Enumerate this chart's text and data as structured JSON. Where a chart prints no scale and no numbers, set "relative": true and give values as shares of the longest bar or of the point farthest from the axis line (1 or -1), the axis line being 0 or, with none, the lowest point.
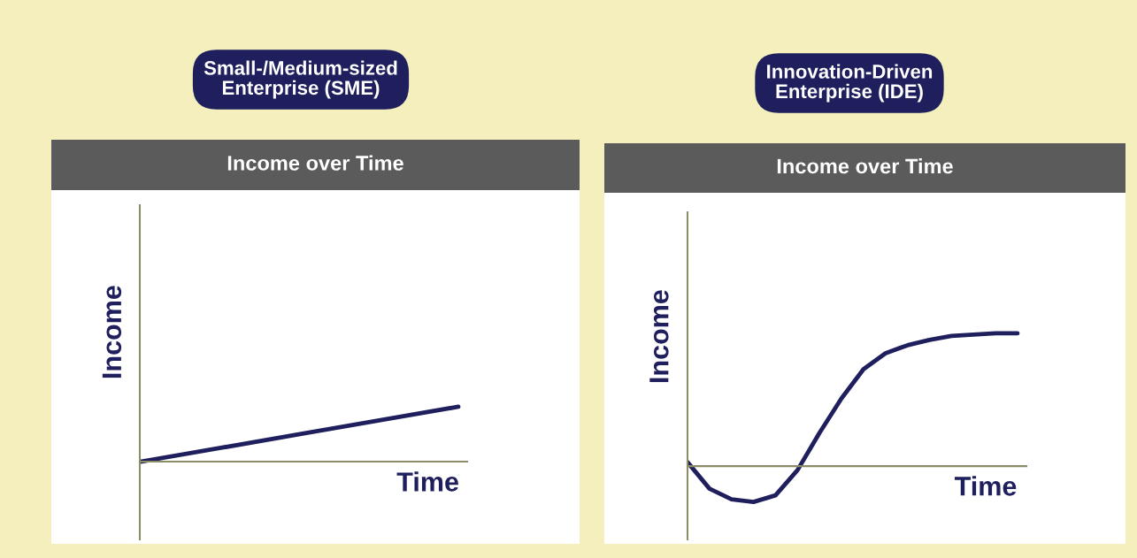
{
  "chart_data": [
    {
      "type": "line",
      "title": "Small-/Medium-sized\nEnterprise (SME)",
      "subtitle": "Income over Time",
      "xlabel": "Time",
      "ylabel": "Income",
      "relative": true,
      "categories": [
        null,
        null,
        null,
        null,
        null
      ],
      "series": [
        {
          "color": "#1f1f5e",
          "values": [
            0,
            0.25,
            0.5,
            0.75,
            1
          ]
        }
      ]
    },
    {
      "type": "line",
      "title": "Innovation-Driven\nEnterprise (IDE)",
      "subtitle": "Income over Time",
      "xlabel": "Time",
      "ylabel": "Income",
      "relative": true,
      "categories": [
        null,
        null,
        null,
        null,
        null,
        null,
        null,
        null,
        null,
        null,
        null,
        null,
        null,
        null,
        null,
        null
      ],
      "series": [
        {
          "color": "#1f1f5e",
          "values": [
            0.03,
            -0.17,
            -0.25,
            -0.27,
            -0.22,
            -0.03,
            0.25,
            0.51,
            0.73,
            0.85,
            0.91,
            0.95,
            0.98,
            0.99,
            1,
            1
          ]
        }
      ]
    }
  ]
}
